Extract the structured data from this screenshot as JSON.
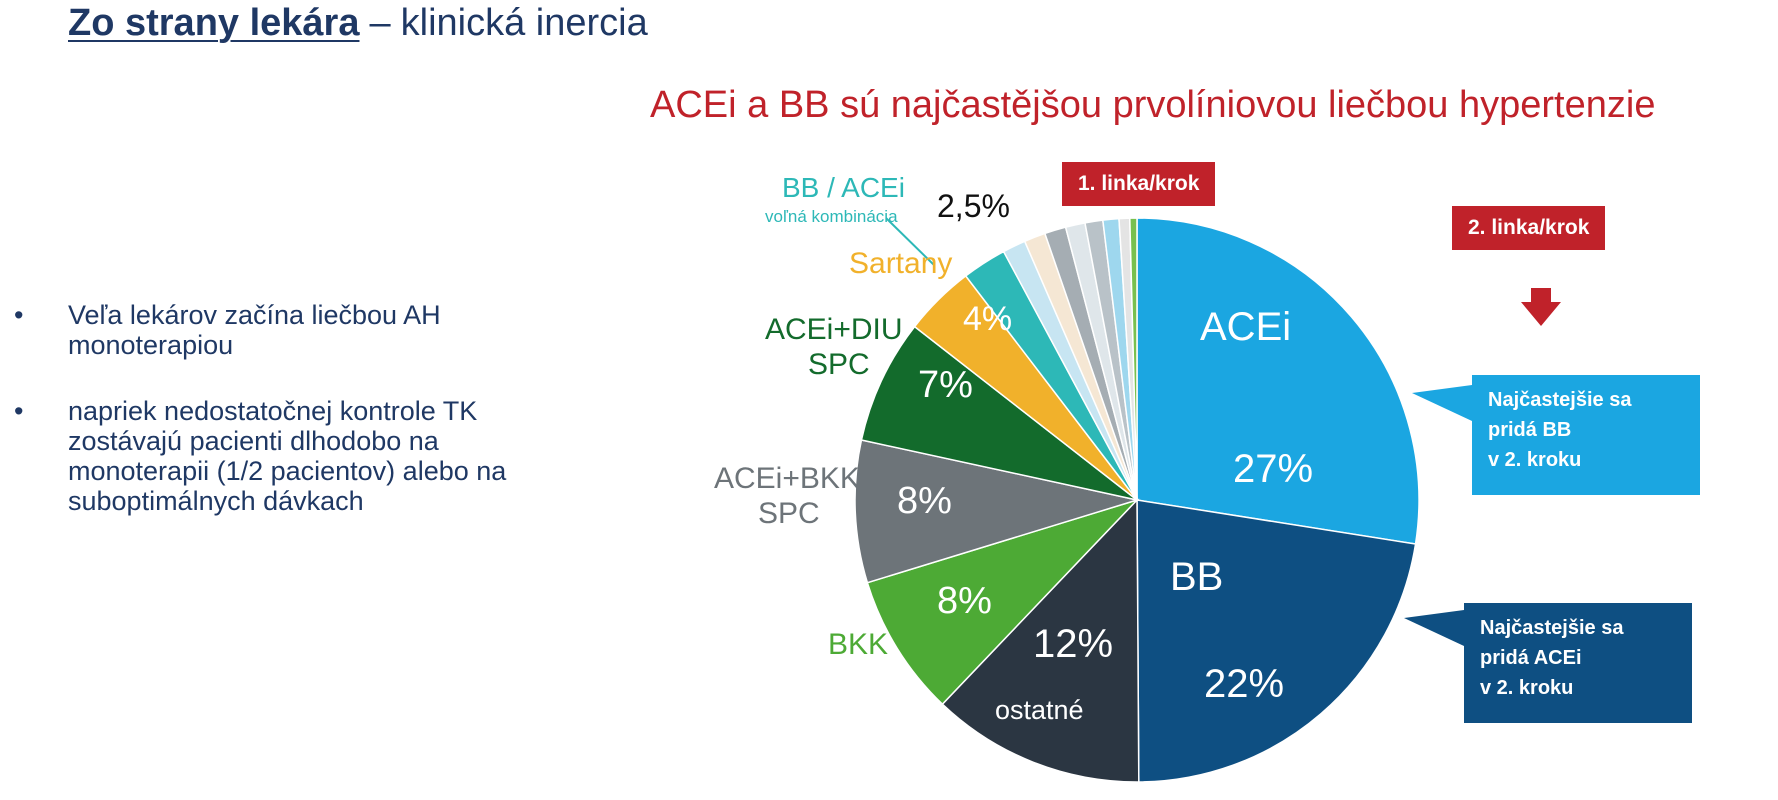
{
  "header": {
    "title_main": "Zo strany lekára",
    "title_separator": "–",
    "title_sub": "klinická inercia"
  },
  "bullets": [
    {
      "marker": "•",
      "text": "Veľa lekárov začína liečbou AH monoterapiou"
    },
    {
      "marker": "•",
      "text": "napriek nedostatočnej kontrole TK zostávajú pacienti dlhodobo na monoterapii (1/2 pacientov) alebo na suboptimálnych dávkach"
    }
  ],
  "chart_data": {
    "type": "pie",
    "title": "ACEi a BB sú najčastějšou prvolíniovou liečbou hypertenzie",
    "slices": [
      {
        "name": "ACEi",
        "value": 27,
        "value_label": "27%",
        "color": "#1ba6e1"
      },
      {
        "name": "BB",
        "value": 22,
        "value_label": "22%",
        "color": "#0e4f82"
      },
      {
        "name": "ostatné",
        "value": 12,
        "value_label": "12%",
        "color": "#2b3642"
      },
      {
        "name": "BKK",
        "value": 8,
        "value_label": "8%",
        "color": "#4daa35"
      },
      {
        "name": "ACEi+BKK SPC",
        "value": 8,
        "value_label": "8%",
        "color": "#6d7479"
      },
      {
        "name": "ACEi+DIU SPC",
        "value": 7,
        "value_label": "7%",
        "color": "#136b2c"
      },
      {
        "name": "Sartany",
        "value": 4,
        "value_label": "4%",
        "color": "#f1b12b"
      },
      {
        "name": "BB / ACEi voľná kombinácia",
        "value": 2.5,
        "value_label": "2,5%",
        "color": "#2db8b7"
      },
      {
        "name": "",
        "value": 1.3,
        "color": "#c7e5f2"
      },
      {
        "name": "",
        "value": 1.2,
        "color": "#f5e7d4"
      },
      {
        "name": "",
        "value": 1.2,
        "color": "#a5adb3"
      },
      {
        "name": "",
        "value": 1.1,
        "color": "#dfe6ea"
      },
      {
        "name": "",
        "value": 1.0,
        "color": "#b9c2c8"
      },
      {
        "name": "",
        "value": 0.9,
        "color": "#9ed7ee"
      },
      {
        "name": "",
        "value": 0.6,
        "color": "#e4e4e4"
      },
      {
        "name": "",
        "value": 0.4,
        "color": "#78c04e"
      }
    ],
    "labels": {
      "acei": "ACEi",
      "bb": "BB",
      "ostatne": "ostatné",
      "bkk": "BKK",
      "acei_bkk_1": "ACEi+BKK",
      "acei_bkk_2": "SPC",
      "acei_diu_1": "ACEi+DIU",
      "acei_diu_2": "SPC",
      "sartany": "Sartany",
      "bb_acei_1": "BB / ACEi",
      "bb_acei_2": "voľná kombinácia"
    },
    "colors": {
      "label_acei_bkk": "#6d7479",
      "label_acei_diu": "#136b2c",
      "label_sartany": "#f1b12b",
      "label_bb_acei": "#2db8b7",
      "label_bkk": "#4daa35"
    }
  },
  "steps": {
    "first": "1. linka/krok",
    "second": "2. linka/krok"
  },
  "callouts": {
    "acei": [
      "Najčastejšie sa",
      "pridá BB",
      "v 2. kroku"
    ],
    "bb": [
      "Najčastejšie sa",
      "pridá ACEi",
      "v 2. kroku"
    ]
  },
  "colors": {
    "dark_blue": "#1f3864",
    "red": "#c0222a",
    "acei_callout": "#1ba6e1",
    "bb_callout": "#0e4f82"
  }
}
